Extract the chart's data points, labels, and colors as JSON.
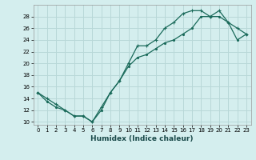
{
  "xlabel": "Humidex (Indice chaleur)",
  "bg_color": "#d4eeee",
  "grid_color": "#b8d8d8",
  "line_color": "#1a6a5a",
  "xlim": [
    -0.5,
    23.5
  ],
  "ylim": [
    9.5,
    30
  ],
  "xticks": [
    0,
    1,
    2,
    3,
    4,
    5,
    6,
    7,
    8,
    9,
    10,
    11,
    12,
    13,
    14,
    15,
    16,
    17,
    18,
    19,
    20,
    21,
    22,
    23
  ],
  "yticks": [
    10,
    12,
    14,
    16,
    18,
    20,
    22,
    24,
    26,
    28
  ],
  "line1_x": [
    0,
    1,
    2,
    3,
    4,
    5,
    6,
    7,
    8,
    9,
    10,
    11,
    12,
    13,
    14,
    15,
    16,
    17,
    18,
    19,
    20,
    21,
    22,
    23
  ],
  "line1_y": [
    15,
    14,
    13,
    12,
    11,
    11,
    10,
    12.5,
    15,
    17,
    20,
    23,
    23,
    24,
    26,
    27,
    28.5,
    29,
    29,
    28,
    29,
    27,
    26,
    25
  ],
  "line2_x": [
    0,
    1,
    2,
    3,
    4,
    5,
    6,
    7,
    8,
    9,
    10,
    11,
    12,
    13,
    14,
    15,
    16,
    17,
    18,
    19,
    20,
    21,
    22,
    23
  ],
  "line2_y": [
    15,
    13.5,
    12.5,
    12,
    11,
    11,
    10,
    12,
    15,
    17,
    19.5,
    21,
    21.5,
    22.5,
    23.5,
    24,
    25,
    26,
    28,
    28,
    28,
    27,
    24,
    25
  ]
}
